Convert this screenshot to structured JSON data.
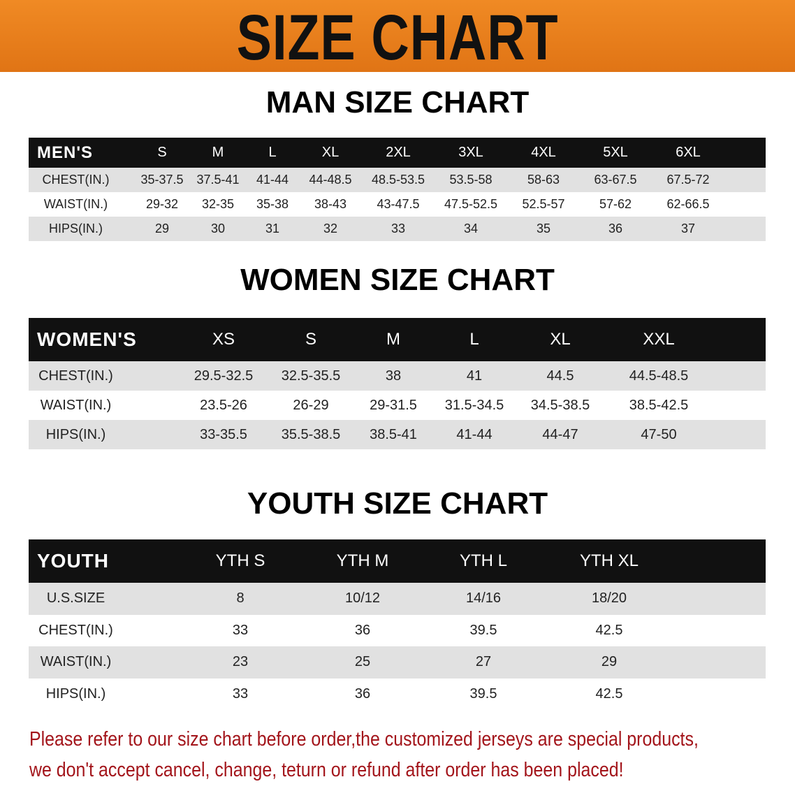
{
  "title": "SIZE CHART",
  "men": {
    "heading": "MAN SIZE CHART",
    "header": [
      "MEN'S",
      "S",
      "M",
      "L",
      "XL",
      "2XL",
      "3XL",
      "4XL",
      "5XL",
      "6XL"
    ],
    "rows": [
      [
        "CHEST(IN.)",
        "35-37.5",
        "37.5-41",
        "41-44",
        "44-48.5",
        "48.5-53.5",
        "53.5-58",
        "58-63",
        "63-67.5",
        "67.5-72"
      ],
      [
        "WAIST(IN.)",
        "29-32",
        "32-35",
        "35-38",
        "38-43",
        "43-47.5",
        "47.5-52.5",
        "52.5-57",
        "57-62",
        "62-66.5"
      ],
      [
        "HIPS(IN.)",
        "29",
        "30",
        "31",
        "32",
        "33",
        "34",
        "35",
        "36",
        "37"
      ]
    ]
  },
  "women": {
    "heading": "WOMEN SIZE CHART",
    "header": [
      "WOMEN'S",
      "XS",
      "S",
      "M",
      "L",
      "XL",
      "XXL"
    ],
    "rows": [
      [
        "CHEST(IN.)",
        "29.5-32.5",
        "32.5-35.5",
        "38",
        "41",
        "44.5",
        "44.5-48.5"
      ],
      [
        "WAIST(IN.)",
        "23.5-26",
        "26-29",
        "29-31.5",
        "31.5-34.5",
        "34.5-38.5",
        "38.5-42.5"
      ],
      [
        "HIPS(IN.)",
        "33-35.5",
        "35.5-38.5",
        "38.5-41",
        "41-44",
        "44-47",
        "47-50"
      ]
    ]
  },
  "youth": {
    "heading": "YOUTH SIZE CHART",
    "header": [
      "YOUTH",
      "YTH S",
      "YTH M",
      "YTH L",
      "YTH XL"
    ],
    "rows": [
      [
        "U.S.SIZE",
        "8",
        "10/12",
        "14/16",
        "18/20"
      ],
      [
        "CHEST(IN.)",
        "33",
        "36",
        "39.5",
        "42.5"
      ],
      [
        "WAIST(IN.)",
        "23",
        "25",
        "27",
        "29"
      ],
      [
        "HIPS(IN.)",
        "33",
        "36",
        "39.5",
        "42.5"
      ]
    ]
  },
  "notice": [
    "Please refer to our size chart before order,the customized jerseys are special products,",
    "we don't accept cancel, change, teturn or refund after order has been placed!"
  ],
  "colors": {
    "banner": "#e87d1e",
    "header_row": "#111111",
    "stripe": "#e1e1e1",
    "notice": "#a3151b"
  }
}
